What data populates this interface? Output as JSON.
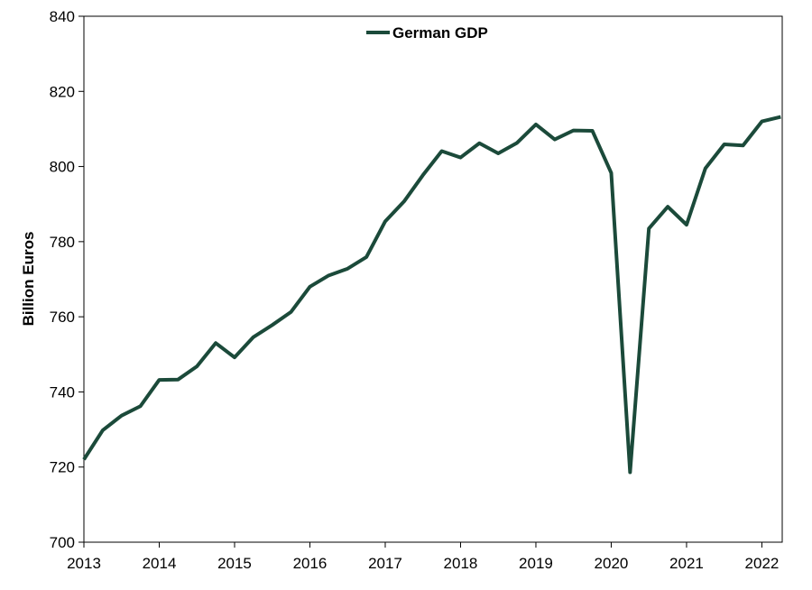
{
  "chart_data": {
    "type": "line",
    "title": "",
    "xlabel": "",
    "ylabel": "Billion Euros",
    "ylim": [
      700,
      840
    ],
    "yticks": [
      "700",
      "720",
      "740",
      "760",
      "780",
      "800",
      "820",
      "840"
    ],
    "xlim": [
      2013,
      2022.27
    ],
    "xticks": [
      "2013",
      "2014",
      "2015",
      "2016",
      "2017",
      "2018",
      "2019",
      "2020",
      "2021",
      "2022"
    ],
    "grid": false,
    "legend_position": "top-center",
    "series": [
      {
        "name": "German GDP",
        "color": "#1b4a3a",
        "x": [
          2013.0,
          2013.25,
          2013.5,
          2013.75,
          2014.0,
          2014.25,
          2014.5,
          2014.75,
          2015.0,
          2015.25,
          2015.5,
          2015.75,
          2016.0,
          2016.25,
          2016.5,
          2016.75,
          2017.0,
          2017.25,
          2017.5,
          2017.75,
          2018.0,
          2018.25,
          2018.5,
          2018.75,
          2019.0,
          2019.25,
          2019.5,
          2019.75,
          2020.0,
          2020.25,
          2020.5,
          2020.75,
          2021.0,
          2021.25,
          2021.5,
          2021.75,
          2022.0,
          2022.25
        ],
        "values": [
          722.0,
          729.8,
          733.7,
          736.2,
          743.2,
          743.3,
          746.8,
          753.0,
          749.2,
          754.6,
          757.8,
          761.3,
          768.0,
          771.0,
          772.8,
          775.9,
          785.4,
          790.7,
          797.7,
          804.1,
          802.4,
          806.2,
          803.5,
          806.3,
          811.2,
          807.2,
          809.6,
          809.5,
          798.3,
          718.6,
          783.5,
          789.3,
          784.5,
          799.5,
          805.9,
          805.6,
          812.0,
          813.2
        ]
      }
    ]
  }
}
